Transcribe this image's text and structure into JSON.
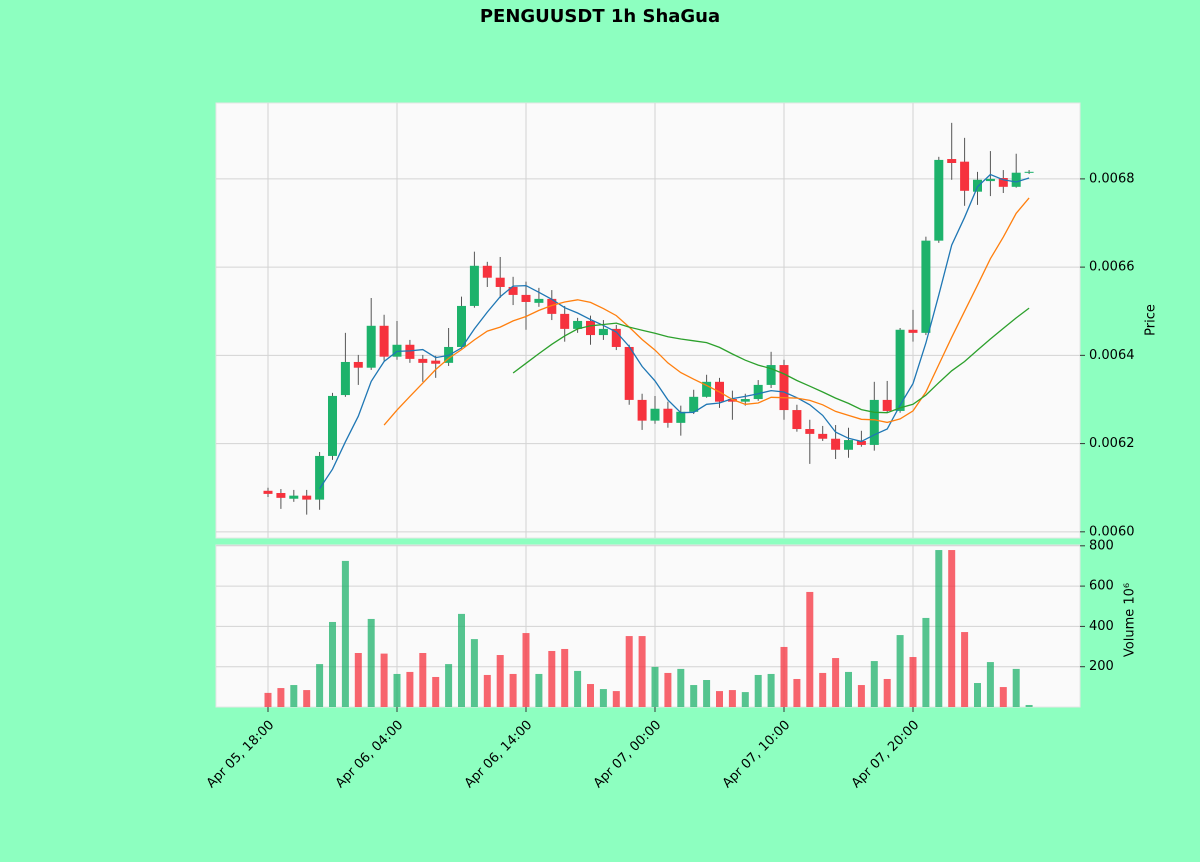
{
  "chart_data": {
    "type": "candlestick",
    "title": "PENGUUSDT 1h ShaGua",
    "ylabel": "Price",
    "y2label": "Volume  10⁶",
    "categories": [
      "Apr 05, 18:00",
      null,
      null,
      null,
      null,
      null,
      null,
      null,
      null,
      null,
      "Apr 06, 04:00",
      null,
      null,
      null,
      null,
      null,
      null,
      null,
      null,
      null,
      "Apr 06, 14:00",
      null,
      null,
      null,
      null,
      null,
      null,
      null,
      null,
      null,
      "Apr 07, 00:00",
      null,
      null,
      null,
      null,
      null,
      null,
      null,
      null,
      null,
      "Apr 07, 10:00",
      null,
      null,
      null,
      null,
      null,
      null,
      null,
      null,
      null,
      "Apr 07, 20:00",
      null,
      null,
      null,
      null,
      null,
      null,
      null,
      null,
      null
    ],
    "open": [
      0.006093,
      0.006088,
      0.006075,
      0.006082,
      0.006073,
      0.006172,
      0.00631,
      0.006385,
      0.006372,
      0.006467,
      0.006397,
      0.006424,
      0.006392,
      0.006388,
      0.006383,
      0.006419,
      0.006512,
      0.006603,
      0.006576,
      0.006555,
      0.006537,
      0.006519,
      0.006528,
      0.006494,
      0.00646,
      0.006478,
      0.006446,
      0.00646,
      0.006419,
      0.006299,
      0.006252,
      0.006279,
      0.006247,
      0.006272,
      0.006306,
      0.00634,
      0.006301,
      0.006295,
      0.006301,
      0.006333,
      0.006378,
      0.006276,
      0.006233,
      0.006222,
      0.006211,
      0.006186,
      0.006206,
      0.006197,
      0.006299,
      0.006274,
      0.006458,
      0.006451,
      0.00666,
      0.006845,
      0.006839,
      0.006771,
      0.006795,
      0.006802,
      0.006782,
      0.006814
    ],
    "high": [
      0.0061,
      0.006097,
      0.006095,
      0.006095,
      0.006181,
      0.006315,
      0.006451,
      0.006401,
      0.00653,
      0.006492,
      0.006478,
      0.006435,
      0.006401,
      0.006399,
      0.006462,
      0.006533,
      0.006635,
      0.006612,
      0.006623,
      0.006578,
      0.006567,
      0.006553,
      0.006548,
      0.006512,
      0.006485,
      0.00649,
      0.00648,
      0.006469,
      0.006424,
      0.006313,
      0.006308,
      0.006295,
      0.006286,
      0.006322,
      0.006356,
      0.006349,
      0.00632,
      0.006313,
      0.006344,
      0.006408,
      0.00639,
      0.006288,
      0.006254,
      0.00624,
      0.006242,
      0.006236,
      0.006229,
      0.00634,
      0.006342,
      0.006462,
      0.006503,
      0.006669,
      0.00685,
      0.006927,
      0.006893,
      0.006816,
      0.006863,
      0.00682,
      0.006857,
      0.00682
    ],
    "low": [
      0.006079,
      0.006052,
      0.006068,
      0.006039,
      0.00605,
      0.006163,
      0.006306,
      0.006333,
      0.006367,
      0.006388,
      0.00639,
      0.006383,
      0.00634,
      0.006349,
      0.006376,
      0.006415,
      0.006508,
      0.006555,
      0.00653,
      0.006514,
      0.006458,
      0.00651,
      0.00648,
      0.006431,
      0.006451,
      0.006424,
      0.006435,
      0.006412,
      0.006288,
      0.006231,
      0.006245,
      0.006236,
      0.006218,
      0.006267,
      0.006304,
      0.006281,
      0.006254,
      0.006286,
      0.006297,
      0.006326,
      0.006254,
      0.006227,
      0.006154,
      0.006206,
      0.006165,
      0.006168,
      0.006193,
      0.006184,
      0.00627,
      0.00627,
      0.006431,
      0.006446,
      0.006655,
      0.006798,
      0.006739,
      0.006741,
      0.006761,
      0.006768,
      0.00678,
      0.006811
    ],
    "close": [
      0.006086,
      0.006077,
      0.006082,
      0.006073,
      0.006172,
      0.006308,
      0.006385,
      0.006372,
      0.006467,
      0.006397,
      0.006424,
      0.006392,
      0.006383,
      0.006381,
      0.006419,
      0.006512,
      0.006603,
      0.006576,
      0.006555,
      0.006537,
      0.006521,
      0.006528,
      0.006494,
      0.00646,
      0.006478,
      0.006446,
      0.00646,
      0.006419,
      0.006299,
      0.006252,
      0.006279,
      0.006247,
      0.006272,
      0.006306,
      0.00634,
      0.006295,
      0.006295,
      0.006301,
      0.006333,
      0.006378,
      0.006276,
      0.006233,
      0.006222,
      0.006211,
      0.006186,
      0.006208,
      0.006197,
      0.006299,
      0.006274,
      0.006458,
      0.006451,
      0.00666,
      0.006843,
      0.006836,
      0.006773,
      0.006798,
      0.0068,
      0.006782,
      0.006814,
      0.006816
    ],
    "volume": [
      70,
      94,
      109,
      84,
      213,
      422,
      725,
      268,
      437,
      265,
      164,
      174,
      268,
      149,
      213,
      462,
      337,
      159,
      258,
      164,
      367,
      164,
      278,
      288,
      179,
      114,
      89,
      79,
      352,
      352,
      199,
      169,
      189,
      109,
      134,
      79,
      84,
      74,
      159,
      164,
      298,
      139,
      571,
      169,
      243,
      174,
      109,
      228,
      139,
      357,
      248,
      442,
      779,
      779,
      372,
      119,
      223,
      99,
      189,
      10
    ],
    "up_color": "#1db26b",
    "down_color": "#f6323d",
    "moving_averages": [
      {
        "color": "#1f77b4",
        "values": [
          null,
          null,
          null,
          null,
          0.006098,
          0.006142,
          0.006204,
          0.006262,
          0.006341,
          0.006386,
          0.006409,
          0.00641,
          0.006413,
          0.006395,
          0.0064,
          0.006417,
          0.00646,
          0.006498,
          0.006533,
          0.006557,
          0.006558,
          0.006543,
          0.006527,
          0.006508,
          0.006496,
          0.006481,
          0.006468,
          0.006453,
          0.00642,
          0.006375,
          0.006342,
          0.006299,
          0.00627,
          0.006271,
          0.006289,
          0.006292,
          0.006302,
          0.006307,
          0.006313,
          0.00632,
          0.006317,
          0.006304,
          0.006288,
          0.006264,
          0.006226,
          0.006212,
          0.006205,
          0.00622,
          0.006233,
          0.006287,
          0.006336,
          0.006428,
          0.006537,
          0.00665,
          0.006713,
          0.006782,
          0.00681,
          0.006798,
          0.006793,
          0.006802
        ]
      },
      {
        "color": "#ff7f0e",
        "values": [
          null,
          null,
          null,
          null,
          null,
          null,
          null,
          null,
          null,
          0.006242,
          0.006276,
          0.006307,
          0.006337,
          0.006368,
          0.006393,
          0.006413,
          0.006435,
          0.006455,
          0.006464,
          0.006478,
          0.006488,
          0.006502,
          0.006513,
          0.006521,
          0.006526,
          0.00652,
          0.006506,
          0.00649,
          0.006464,
          0.006436,
          0.006412,
          0.006383,
          0.006361,
          0.006346,
          0.006332,
          0.006317,
          0.0063,
          0.006289,
          0.006292,
          0.006305,
          0.006304,
          0.006303,
          0.006298,
          0.006288,
          0.006273,
          0.006264,
          0.006255,
          0.006254,
          0.006248,
          0.006256,
          0.006274,
          0.006317,
          0.006379,
          0.006441,
          0.0065,
          0.006559,
          0.006619,
          0.006668,
          0.006722,
          0.006757
        ]
      },
      {
        "color": "#2ca02c",
        "values": [
          null,
          null,
          null,
          null,
          null,
          null,
          null,
          null,
          null,
          null,
          null,
          null,
          null,
          null,
          null,
          null,
          null,
          null,
          null,
          0.00636,
          0.006382,
          0.006404,
          0.006425,
          0.006444,
          0.00646,
          0.006467,
          0.00647,
          0.006473,
          0.006464,
          0.006457,
          0.00645,
          0.006442,
          0.006437,
          0.006433,
          0.006429,
          0.006418,
          0.006403,
          0.006389,
          0.006378,
          0.00637,
          0.006358,
          0.006343,
          0.00633,
          0.006317,
          0.006303,
          0.006291,
          0.006277,
          0.006271,
          0.00627,
          0.006281,
          0.006289,
          0.00631,
          0.006338,
          0.006365,
          0.006386,
          0.006412,
          0.006437,
          0.006461,
          0.006485,
          0.006507
        ]
      }
    ],
    "ylim": [
      0.005986,
      0.006972
    ],
    "yticks": [
      {
        "value": 0.006,
        "label": "0.0060"
      },
      0.0062,
      0.0064,
      0.0066,
      0.0068
    ],
    "y2lim": [
      0,
      804
    ],
    "y2ticks": [
      200,
      400,
      600,
      800
    ],
    "grid": true
  }
}
